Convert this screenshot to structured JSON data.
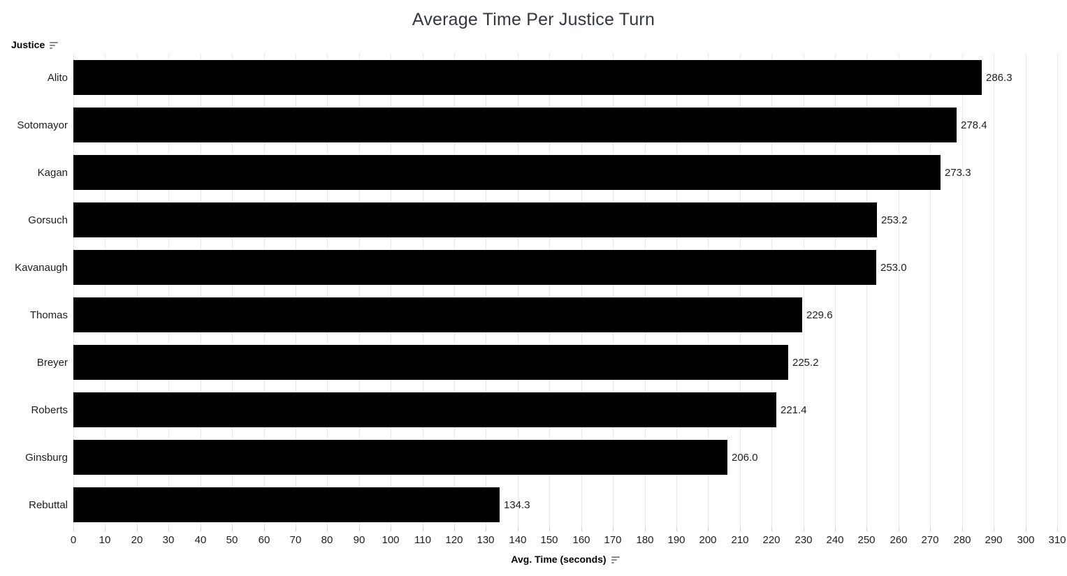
{
  "title": "Average Time Per Justice Turn",
  "row_field": {
    "label": "Justice",
    "sort_icon": "sort-descending"
  },
  "axis": {
    "label": "Avg. Time (seconds)",
    "sort_icon": "sort-descending",
    "min": 0,
    "max": 310,
    "tick_interval": 10,
    "tick_labels": [
      "0",
      "10",
      "20",
      "30",
      "40",
      "50",
      "60",
      "70",
      "80",
      "90",
      "100",
      "110",
      "120",
      "130",
      "140",
      "150",
      "160",
      "170",
      "180",
      "190",
      "200",
      "210",
      "220",
      "230",
      "240",
      "250",
      "260",
      "270",
      "280",
      "290",
      "300",
      "310"
    ]
  },
  "colors": {
    "bar": "#000000",
    "gridline": "#e8e8e8",
    "title_text": "#34383d",
    "label_text": "#1d1d1d",
    "sort_icon": "#8b8b8b",
    "background": "#ffffff"
  },
  "chart_data": {
    "type": "bar",
    "orientation": "horizontal",
    "title": "Average Time Per Justice Turn",
    "xlabel": "Avg. Time (seconds)",
    "ylabel": "Justice",
    "categories": [
      "Alito",
      "Sotomayor",
      "Kagan",
      "Gorsuch",
      "Kavanaugh",
      "Thomas",
      "Breyer",
      "Roberts",
      "Ginsburg",
      "Rebuttal"
    ],
    "values": [
      286.3,
      278.4,
      273.3,
      253.2,
      253.0,
      229.6,
      225.2,
      221.4,
      206.0,
      134.3
    ],
    "value_labels": [
      "286.3",
      "278.4",
      "273.3",
      "253.2",
      "253.0",
      "229.6",
      "225.2",
      "221.4",
      "206.0",
      "134.3"
    ],
    "xlim": [
      0,
      310
    ],
    "grid": true,
    "legend": false,
    "bar_color": "#000000"
  }
}
